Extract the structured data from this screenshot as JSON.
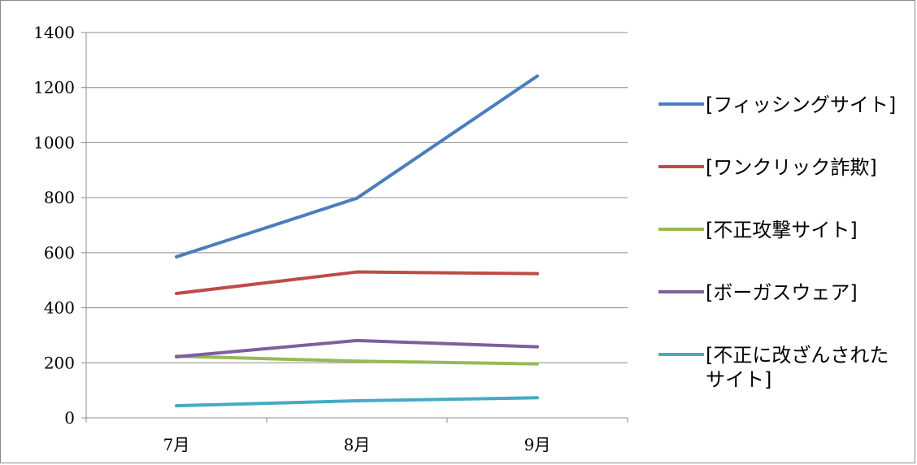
{
  "chart_data": {
    "type": "line",
    "categories": [
      "7月",
      "8月",
      "9月"
    ],
    "ylim": [
      0,
      1400
    ],
    "yticks": [
      0,
      200,
      400,
      600,
      800,
      1000,
      1200,
      1400
    ],
    "grid": true,
    "legend_position": "right",
    "series": [
      {
        "name": "[フィッシングサイト]",
        "legend_lines": [
          "[フィッシングサイト]"
        ],
        "color": "#4a7ebb",
        "values": [
          585,
          798,
          1242
        ]
      },
      {
        "name": "[ワンクリック詐欺]",
        "legend_lines": [
          "[ワンクリック詐欺]"
        ],
        "color": "#be4b48",
        "values": [
          452,
          530,
          524
        ]
      },
      {
        "name": "[不正攻撃サイト]",
        "legend_lines": [
          "[不正攻撃サイト]"
        ],
        "color": "#98b954",
        "values": [
          224,
          206,
          196
        ]
      },
      {
        "name": "[ボーガスウェア]",
        "legend_lines": [
          "[ボーガスウェア]"
        ],
        "color": "#7d5fa0",
        "values": [
          222,
          281,
          258
        ]
      },
      {
        "name": "[不正に改ざんされたサイト]",
        "legend_lines": [
          "[不正に改ざんされた",
          "サイト]"
        ],
        "color": "#46aac5",
        "values": [
          44,
          62,
          73
        ]
      }
    ]
  }
}
